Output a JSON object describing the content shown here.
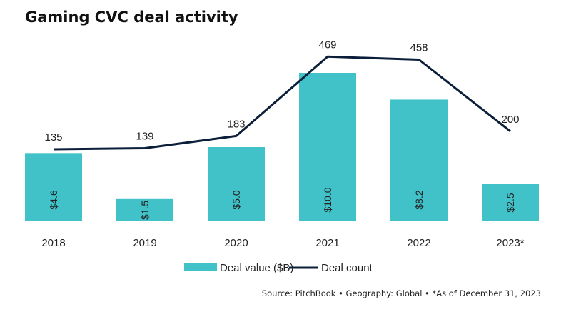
{
  "colors": {
    "bar": "#40c2c8",
    "line": "#0b1f3a",
    "text": "#222222"
  },
  "title": "Gaming CVC deal activity",
  "source": "Source: PitchBook • Geography: Global • *As of December 31, 2023",
  "chart_data": {
    "type": "bar+line",
    "categories": [
      "2018",
      "2019",
      "2020",
      "2021",
      "2022",
      "2023*"
    ],
    "series": [
      {
        "name": "Deal value ($B)",
        "type": "bar",
        "values": [
          4.6,
          1.5,
          5.0,
          10.0,
          8.2,
          2.5
        ],
        "labels": [
          "$4.6",
          "$1.5",
          "$5.0",
          "$10.0",
          "$8.2",
          "$2.5"
        ]
      },
      {
        "name": "Deal count",
        "type": "line",
        "values": [
          135,
          139,
          183,
          469,
          458,
          200
        ],
        "labels": [
          "135",
          "139",
          "183",
          "469",
          "458",
          "200"
        ]
      }
    ],
    "bar_ylim": [
      0,
      11.5
    ],
    "line_ylim": [
      -125,
      480
    ],
    "legend": "bottom-center",
    "grid": false
  }
}
